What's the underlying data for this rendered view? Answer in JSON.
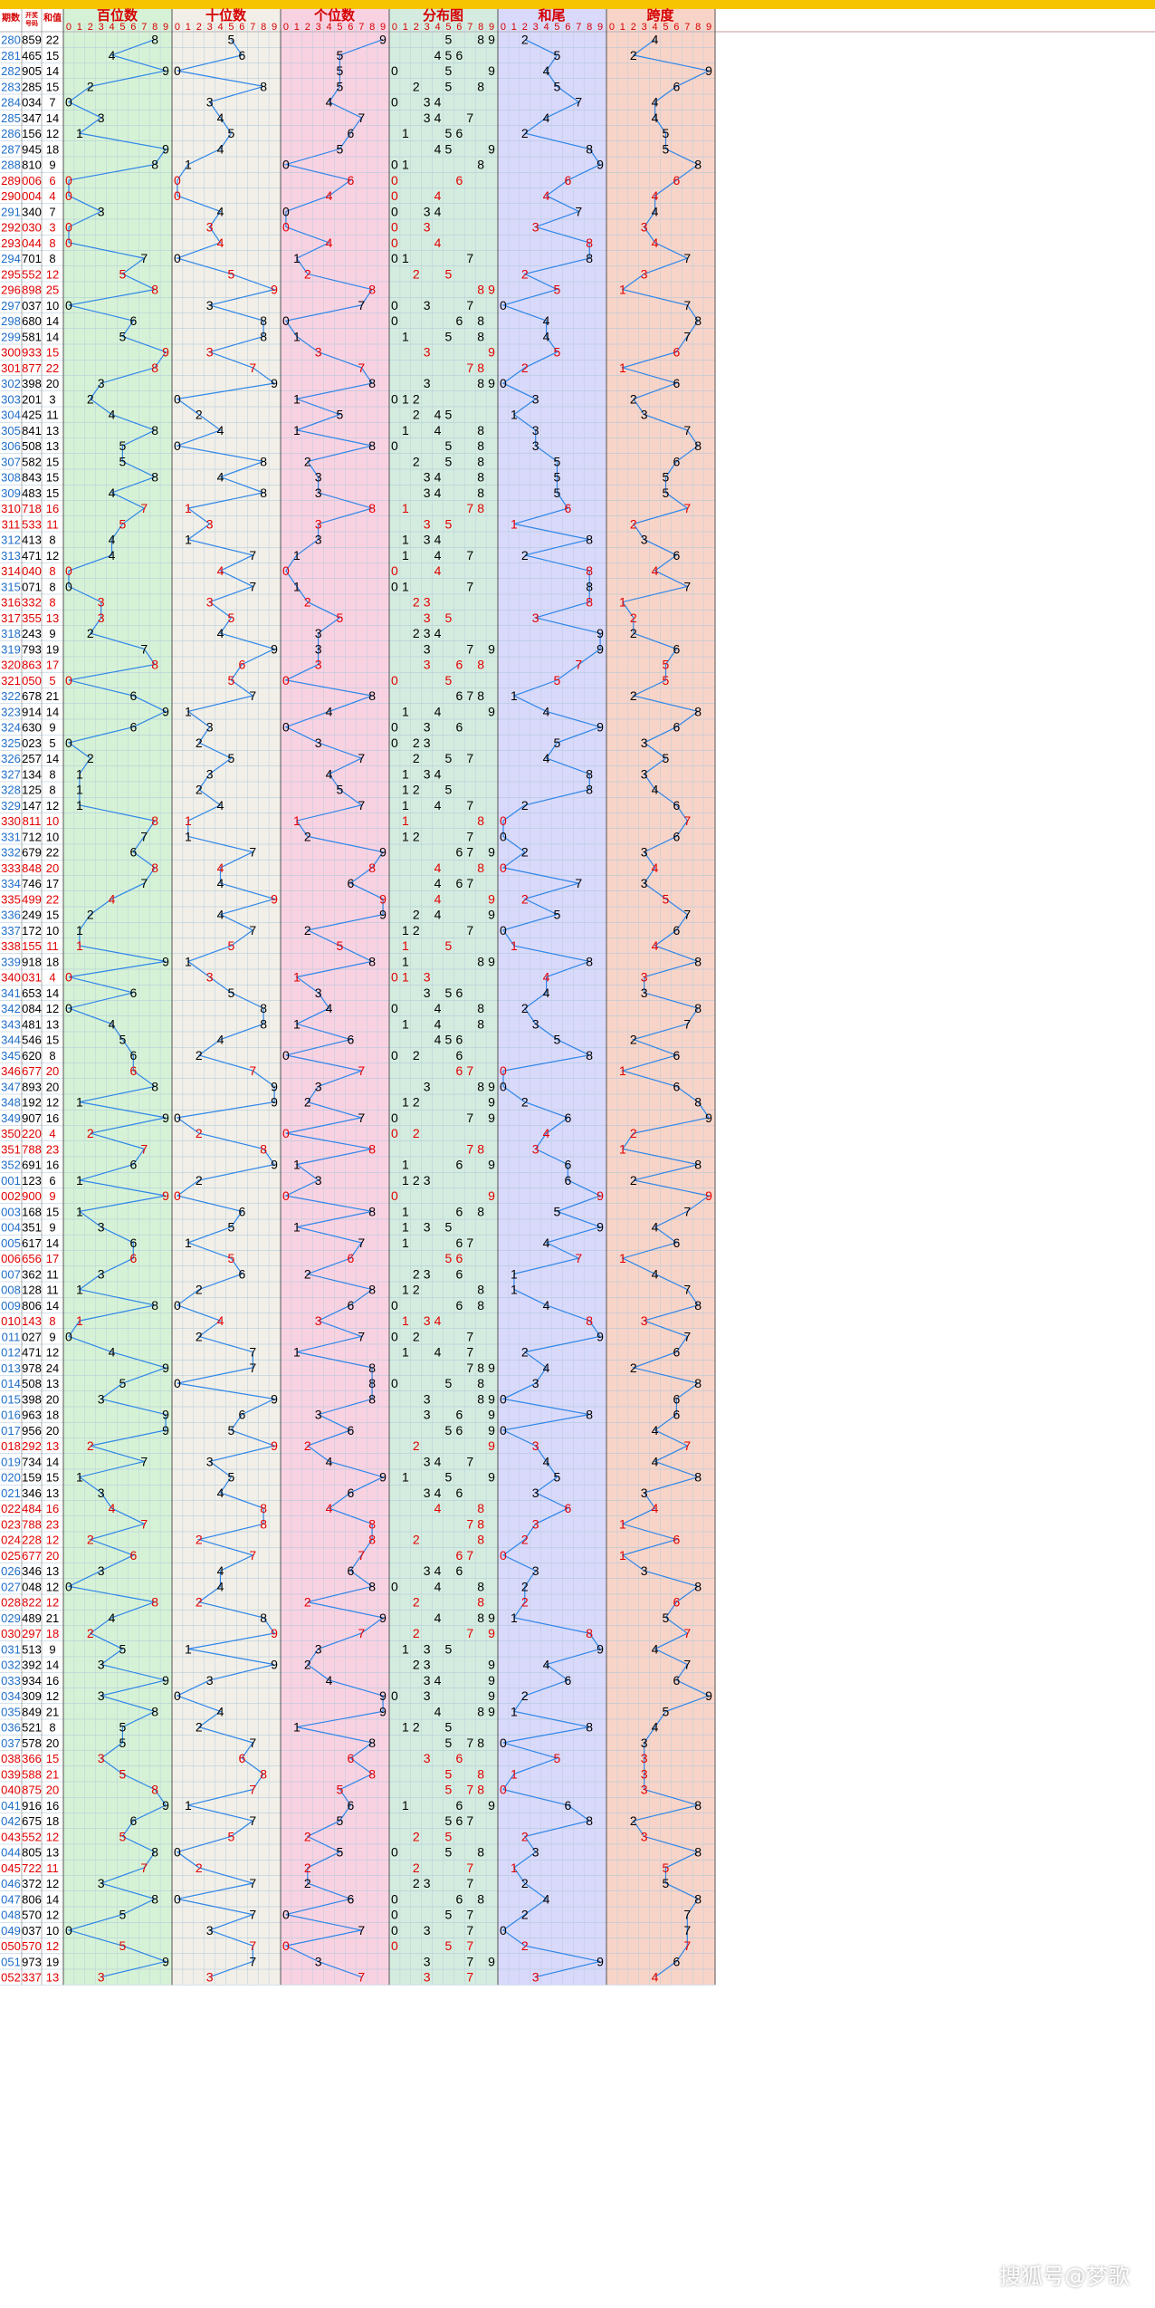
{
  "watermark": "搜狐号@梦歌",
  "colors": {
    "accent": "#f6c400",
    "header_text": "#d40000",
    "line": "#2f86e8",
    "normal_digit": "#000000",
    "highlight_digit": "#e10000",
    "issue_normal": "#1e6ec8",
    "zone_baiwei": "#d6f2d6",
    "zone_shiwei": "#f1efe8",
    "zone_gewei": "#f9d2e2",
    "zone_fenbu": "#d4ecdf",
    "zone_hewei": "#d9d9fb",
    "zone_kuadu": "#f8d4c8"
  },
  "chart_data": {
    "type": "table",
    "title": "",
    "left_headers": [
      "期数",
      "开奖号码",
      "和值"
    ],
    "sections": [
      "百位数",
      "十位数",
      "个位数",
      "分布图",
      "和尾",
      "跨度"
    ],
    "digit_header": [
      "0",
      "1",
      "2",
      "3",
      "4",
      "5",
      "6",
      "7",
      "8",
      "9"
    ],
    "rows": [
      [
        "280",
        "859",
        22
      ],
      [
        "281",
        "465",
        15
      ],
      [
        "282",
        "905",
        14
      ],
      [
        "283",
        "285",
        15
      ],
      [
        "284",
        "034",
        7
      ],
      [
        "285",
        "347",
        14
      ],
      [
        "286",
        "156",
        12
      ],
      [
        "287",
        "945",
        18
      ],
      [
        "288",
        "810",
        9
      ],
      [
        "289",
        "006",
        6
      ],
      [
        "290",
        "004",
        4
      ],
      [
        "291",
        "340",
        7
      ],
      [
        "292",
        "030",
        3
      ],
      [
        "293",
        "044",
        8
      ],
      [
        "294",
        "701",
        8
      ],
      [
        "295",
        "552",
        12
      ],
      [
        "296",
        "898",
        25
      ],
      [
        "297",
        "037",
        10
      ],
      [
        "298",
        "680",
        14
      ],
      [
        "299",
        "581",
        14
      ],
      [
        "300",
        "933",
        15
      ],
      [
        "301",
        "877",
        22
      ],
      [
        "302",
        "398",
        20
      ],
      [
        "303",
        "201",
        3
      ],
      [
        "304",
        "425",
        11
      ],
      [
        "305",
        "841",
        13
      ],
      [
        "306",
        "508",
        13
      ],
      [
        "307",
        "582",
        15
      ],
      [
        "308",
        "843",
        15
      ],
      [
        "309",
        "483",
        15
      ],
      [
        "310",
        "718",
        16
      ],
      [
        "311",
        "533",
        11
      ],
      [
        "312",
        "413",
        8
      ],
      [
        "313",
        "471",
        12
      ],
      [
        "314",
        "040",
        8
      ],
      [
        "315",
        "071",
        8
      ],
      [
        "316",
        "332",
        8
      ],
      [
        "317",
        "355",
        13
      ],
      [
        "318",
        "243",
        9
      ],
      [
        "319",
        "793",
        19
      ],
      [
        "320",
        "863",
        17
      ],
      [
        "321",
        "050",
        5
      ],
      [
        "322",
        "678",
        21
      ],
      [
        "323",
        "914",
        14
      ],
      [
        "324",
        "630",
        9
      ],
      [
        "325",
        "023",
        5
      ],
      [
        "326",
        "257",
        14
      ],
      [
        "327",
        "134",
        8
      ],
      [
        "328",
        "125",
        8
      ],
      [
        "329",
        "147",
        12
      ],
      [
        "330",
        "811",
        10
      ],
      [
        "331",
        "712",
        10
      ],
      [
        "332",
        "679",
        22
      ],
      [
        "333",
        "848",
        20
      ],
      [
        "334",
        "746",
        17
      ],
      [
        "335",
        "499",
        22
      ],
      [
        "336",
        "249",
        15
      ],
      [
        "337",
        "172",
        10
      ],
      [
        "338",
        "155",
        11
      ],
      [
        "339",
        "918",
        18
      ],
      [
        "340",
        "031",
        4
      ],
      [
        "341",
        "653",
        14
      ],
      [
        "342",
        "084",
        12
      ],
      [
        "343",
        "481",
        13
      ],
      [
        "344",
        "546",
        15
      ],
      [
        "345",
        "620",
        8
      ],
      [
        "346",
        "677",
        20
      ],
      [
        "347",
        "893",
        20
      ],
      [
        "348",
        "192",
        12
      ],
      [
        "349",
        "907",
        16
      ],
      [
        "350",
        "220",
        4
      ],
      [
        "351",
        "788",
        23
      ],
      [
        "352",
        "691",
        16
      ],
      [
        "001",
        "123",
        6
      ],
      [
        "002",
        "900",
        9
      ],
      [
        "003",
        "168",
        15
      ],
      [
        "004",
        "351",
        9
      ],
      [
        "005",
        "617",
        14
      ],
      [
        "006",
        "656",
        17
      ],
      [
        "007",
        "362",
        11
      ],
      [
        "008",
        "128",
        11
      ],
      [
        "009",
        "806",
        14
      ],
      [
        "010",
        "143",
        8
      ],
      [
        "011",
        "027",
        9
      ],
      [
        "012",
        "471",
        12
      ],
      [
        "013",
        "978",
        24
      ],
      [
        "014",
        "508",
        13
      ],
      [
        "015",
        "398",
        20
      ],
      [
        "016",
        "963",
        18
      ],
      [
        "017",
        "956",
        20
      ],
      [
        "018",
        "292",
        13
      ],
      [
        "019",
        "734",
        14
      ],
      [
        "020",
        "159",
        15
      ],
      [
        "021",
        "346",
        13
      ],
      [
        "022",
        "484",
        16
      ],
      [
        "023",
        "788",
        23
      ],
      [
        "024",
        "228",
        12
      ],
      [
        "025",
        "677",
        20
      ],
      [
        "026",
        "346",
        13
      ],
      [
        "027",
        "048",
        12
      ],
      [
        "028",
        "822",
        12
      ],
      [
        "029",
        "489",
        21
      ],
      [
        "030",
        "297",
        18
      ],
      [
        "031",
        "513",
        9
      ],
      [
        "032",
        "392",
        14
      ],
      [
        "033",
        "934",
        16
      ],
      [
        "034",
        "309",
        12
      ],
      [
        "035",
        "849",
        21
      ],
      [
        "036",
        "521",
        8
      ],
      [
        "037",
        "578",
        20
      ],
      [
        "038",
        "366",
        15
      ],
      [
        "039",
        "588",
        21
      ],
      [
        "040",
        "875",
        20
      ],
      [
        "041",
        "916",
        16
      ],
      [
        "042",
        "675",
        18
      ],
      [
        "043",
        "552",
        12
      ],
      [
        "044",
        "805",
        13
      ],
      [
        "045",
        "722",
        11
      ],
      [
        "046",
        "372",
        12
      ],
      [
        "047",
        "806",
        14
      ],
      [
        "048",
        "570",
        12
      ],
      [
        "049",
        "037",
        10
      ],
      [
        "050",
        "570",
        12
      ],
      [
        "051",
        "973",
        19
      ],
      [
        "052",
        "337",
        13
      ]
    ],
    "highlighted_rows": [
      "289",
      "290",
      "292",
      "293",
      "295",
      "296",
      "300",
      "301",
      "310",
      "311",
      "314",
      "316",
      "317",
      "320",
      "321",
      "330",
      "333",
      "335",
      "338",
      "340",
      "346",
      "350",
      "351",
      "002",
      "006",
      "010",
      "018",
      "022",
      "023",
      "024",
      "025",
      "028",
      "030",
      "038",
      "039",
      "040",
      "043",
      "045",
      "050",
      "052"
    ]
  }
}
